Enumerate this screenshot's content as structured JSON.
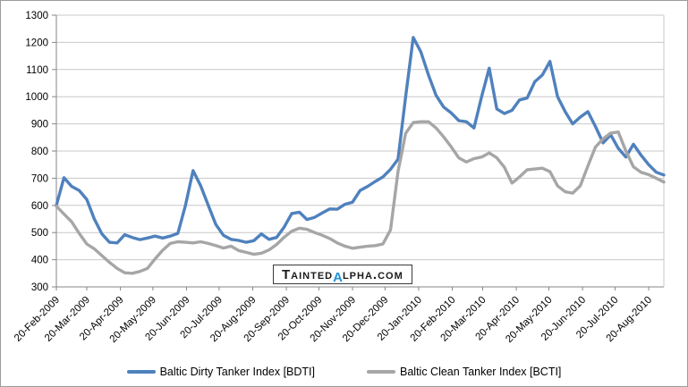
{
  "chart_data": {
    "type": "line",
    "title": "",
    "grid": true,
    "legend_position": "bottom",
    "points_interval": "weekly",
    "x_axis": {
      "tick_labels": [
        "20-Feb-2009",
        "20-Mar-2009",
        "20-Apr-2009",
        "20-May-2009",
        "20-Jun-2009",
        "20-Jul-2009",
        "20-Aug-2009",
        "20-Sep-2009",
        "20-Oct-2009",
        "20-Nov-2009",
        "20-Dec-2009",
        "20-Jan-2010",
        "20-Feb-2010",
        "20-Mar-2010",
        "20-Apr-2010",
        "20-May-2010",
        "20-Jun-2010",
        "20-Jul-2010",
        "20-Aug-2010"
      ],
      "tick_positions_weeks": [
        0,
        4,
        8.43,
        12.71,
        17.14,
        21.43,
        25.86,
        30.29,
        34.57,
        39,
        43.29,
        47.71,
        52.14,
        56.14,
        60.57,
        64.86,
        69.29,
        73.57,
        78
      ],
      "total_weeks": 80
    },
    "y_axis": {
      "min": 300,
      "max": 1300,
      "step": 100,
      "tick_labels": [
        "300",
        "400",
        "500",
        "600",
        "700",
        "800",
        "900",
        "1000",
        "1100",
        "1200",
        "1300"
      ]
    },
    "series": [
      {
        "name": "Baltic Dirty Tanker Index [BDTI]",
        "color": "#4f81bd",
        "values": [
          600,
          702,
          670,
          655,
          622,
          550,
          495,
          464,
          462,
          492,
          482,
          474,
          480,
          487,
          480,
          487,
          497,
          600,
          728,
          672,
          600,
          530,
          490,
          475,
          471,
          464,
          470,
          495,
          475,
          482,
          520,
          570,
          575,
          548,
          556,
          572,
          587,
          586,
          604,
          612,
          655,
          670,
          688,
          705,
          733,
          770,
          1000,
          1218,
          1165,
          1080,
          1005,
          962,
          940,
          912,
          908,
          885,
          1000,
          1105,
          955,
          938,
          950,
          988,
          995,
          1055,
          1080,
          1130,
          1000,
          945,
          900,
          925,
          945,
          890,
          830,
          860,
          810,
          778,
          825,
          785,
          750,
          722,
          712
        ]
      },
      {
        "name": "Baltic Clean Tanker Index [BCTI]",
        "color": "#a6a6a6",
        "values": [
          597,
          568,
          540,
          497,
          458,
          440,
          415,
          390,
          368,
          352,
          350,
          357,
          368,
          403,
          435,
          460,
          466,
          464,
          462,
          466,
          460,
          452,
          443,
          450,
          434,
          427,
          420,
          424,
          436,
          456,
          483,
          505,
          516,
          512,
          500,
          490,
          478,
          462,
          450,
          442,
          446,
          450,
          452,
          458,
          510,
          725,
          865,
          905,
          908,
          908,
          885,
          852,
          815,
          775,
          760,
          772,
          778,
          793,
          775,
          740,
          682,
          705,
          731,
          734,
          737,
          724,
          672,
          650,
          645,
          672,
          745,
          815,
          845,
          866,
          870,
          800,
          742,
          722,
          713,
          700,
          686
        ]
      }
    ],
    "colors": {
      "gridline": "#c8c8c8",
      "axis": "#868686"
    }
  },
  "watermark": {
    "prefix": "Tainted",
    "alpha": "α",
    "suffix": "lpha.com",
    "alpha_color": "#2191d4"
  }
}
